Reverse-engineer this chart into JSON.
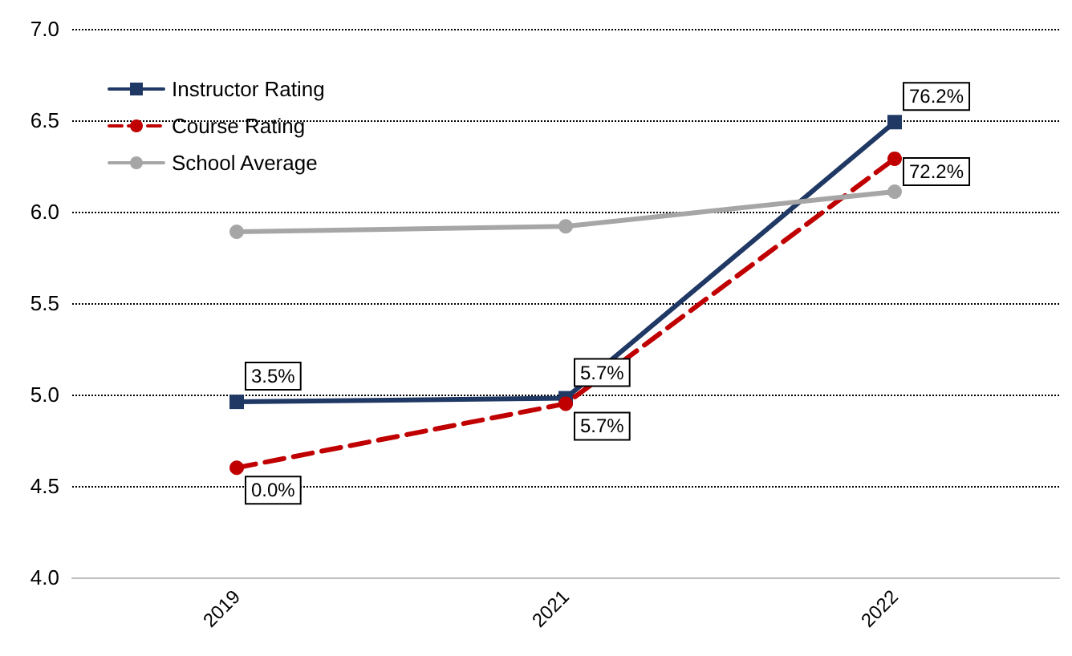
{
  "chart_data": {
    "type": "line",
    "categories": [
      "2019",
      "2021",
      "2022"
    ],
    "series": [
      {
        "name": "Instructor Rating",
        "color": "#1f3864",
        "values": [
          4.96,
          4.98,
          6.49
        ],
        "marker": "square",
        "line_style": "solid"
      },
      {
        "name": "Course Rating",
        "color": "#c00000",
        "values": [
          4.6,
          4.95,
          6.29
        ],
        "marker": "circle",
        "line_style": "dashed"
      },
      {
        "name": "School Average",
        "color": "#a6a6a6",
        "values": [
          5.89,
          5.92,
          6.11
        ],
        "marker": "circle",
        "line_style": "solid"
      }
    ],
    "annotations": [
      {
        "text": "3.5%",
        "x": "2019",
        "y": 4.96
      },
      {
        "text": "5.7%",
        "x": "2021",
        "y": 4.98
      },
      {
        "text": "76.2%",
        "x": "2022",
        "y": 6.49
      },
      {
        "text": "0.0%",
        "x": "2019",
        "y": 4.6
      },
      {
        "text": "5.7%",
        "x": "2021",
        "y": 4.95
      },
      {
        "text": "72.2%",
        "x": "2022",
        "y": 6.29
      }
    ],
    "ylim": [
      4.0,
      7.0
    ],
    "yticks": [
      {
        "value": 4,
        "label": "4.0"
      },
      {
        "value": 4.5,
        "label": "4.5"
      },
      {
        "value": 5,
        "label": "5.0"
      },
      {
        "value": 5.5,
        "label": "5.5"
      },
      {
        "value": 6,
        "label": "6.0"
      },
      {
        "value": 6.5,
        "label": "6.5"
      },
      {
        "value": 7,
        "label": "7.0"
      }
    ],
    "grid": "y",
    "legend": "top left"
  }
}
